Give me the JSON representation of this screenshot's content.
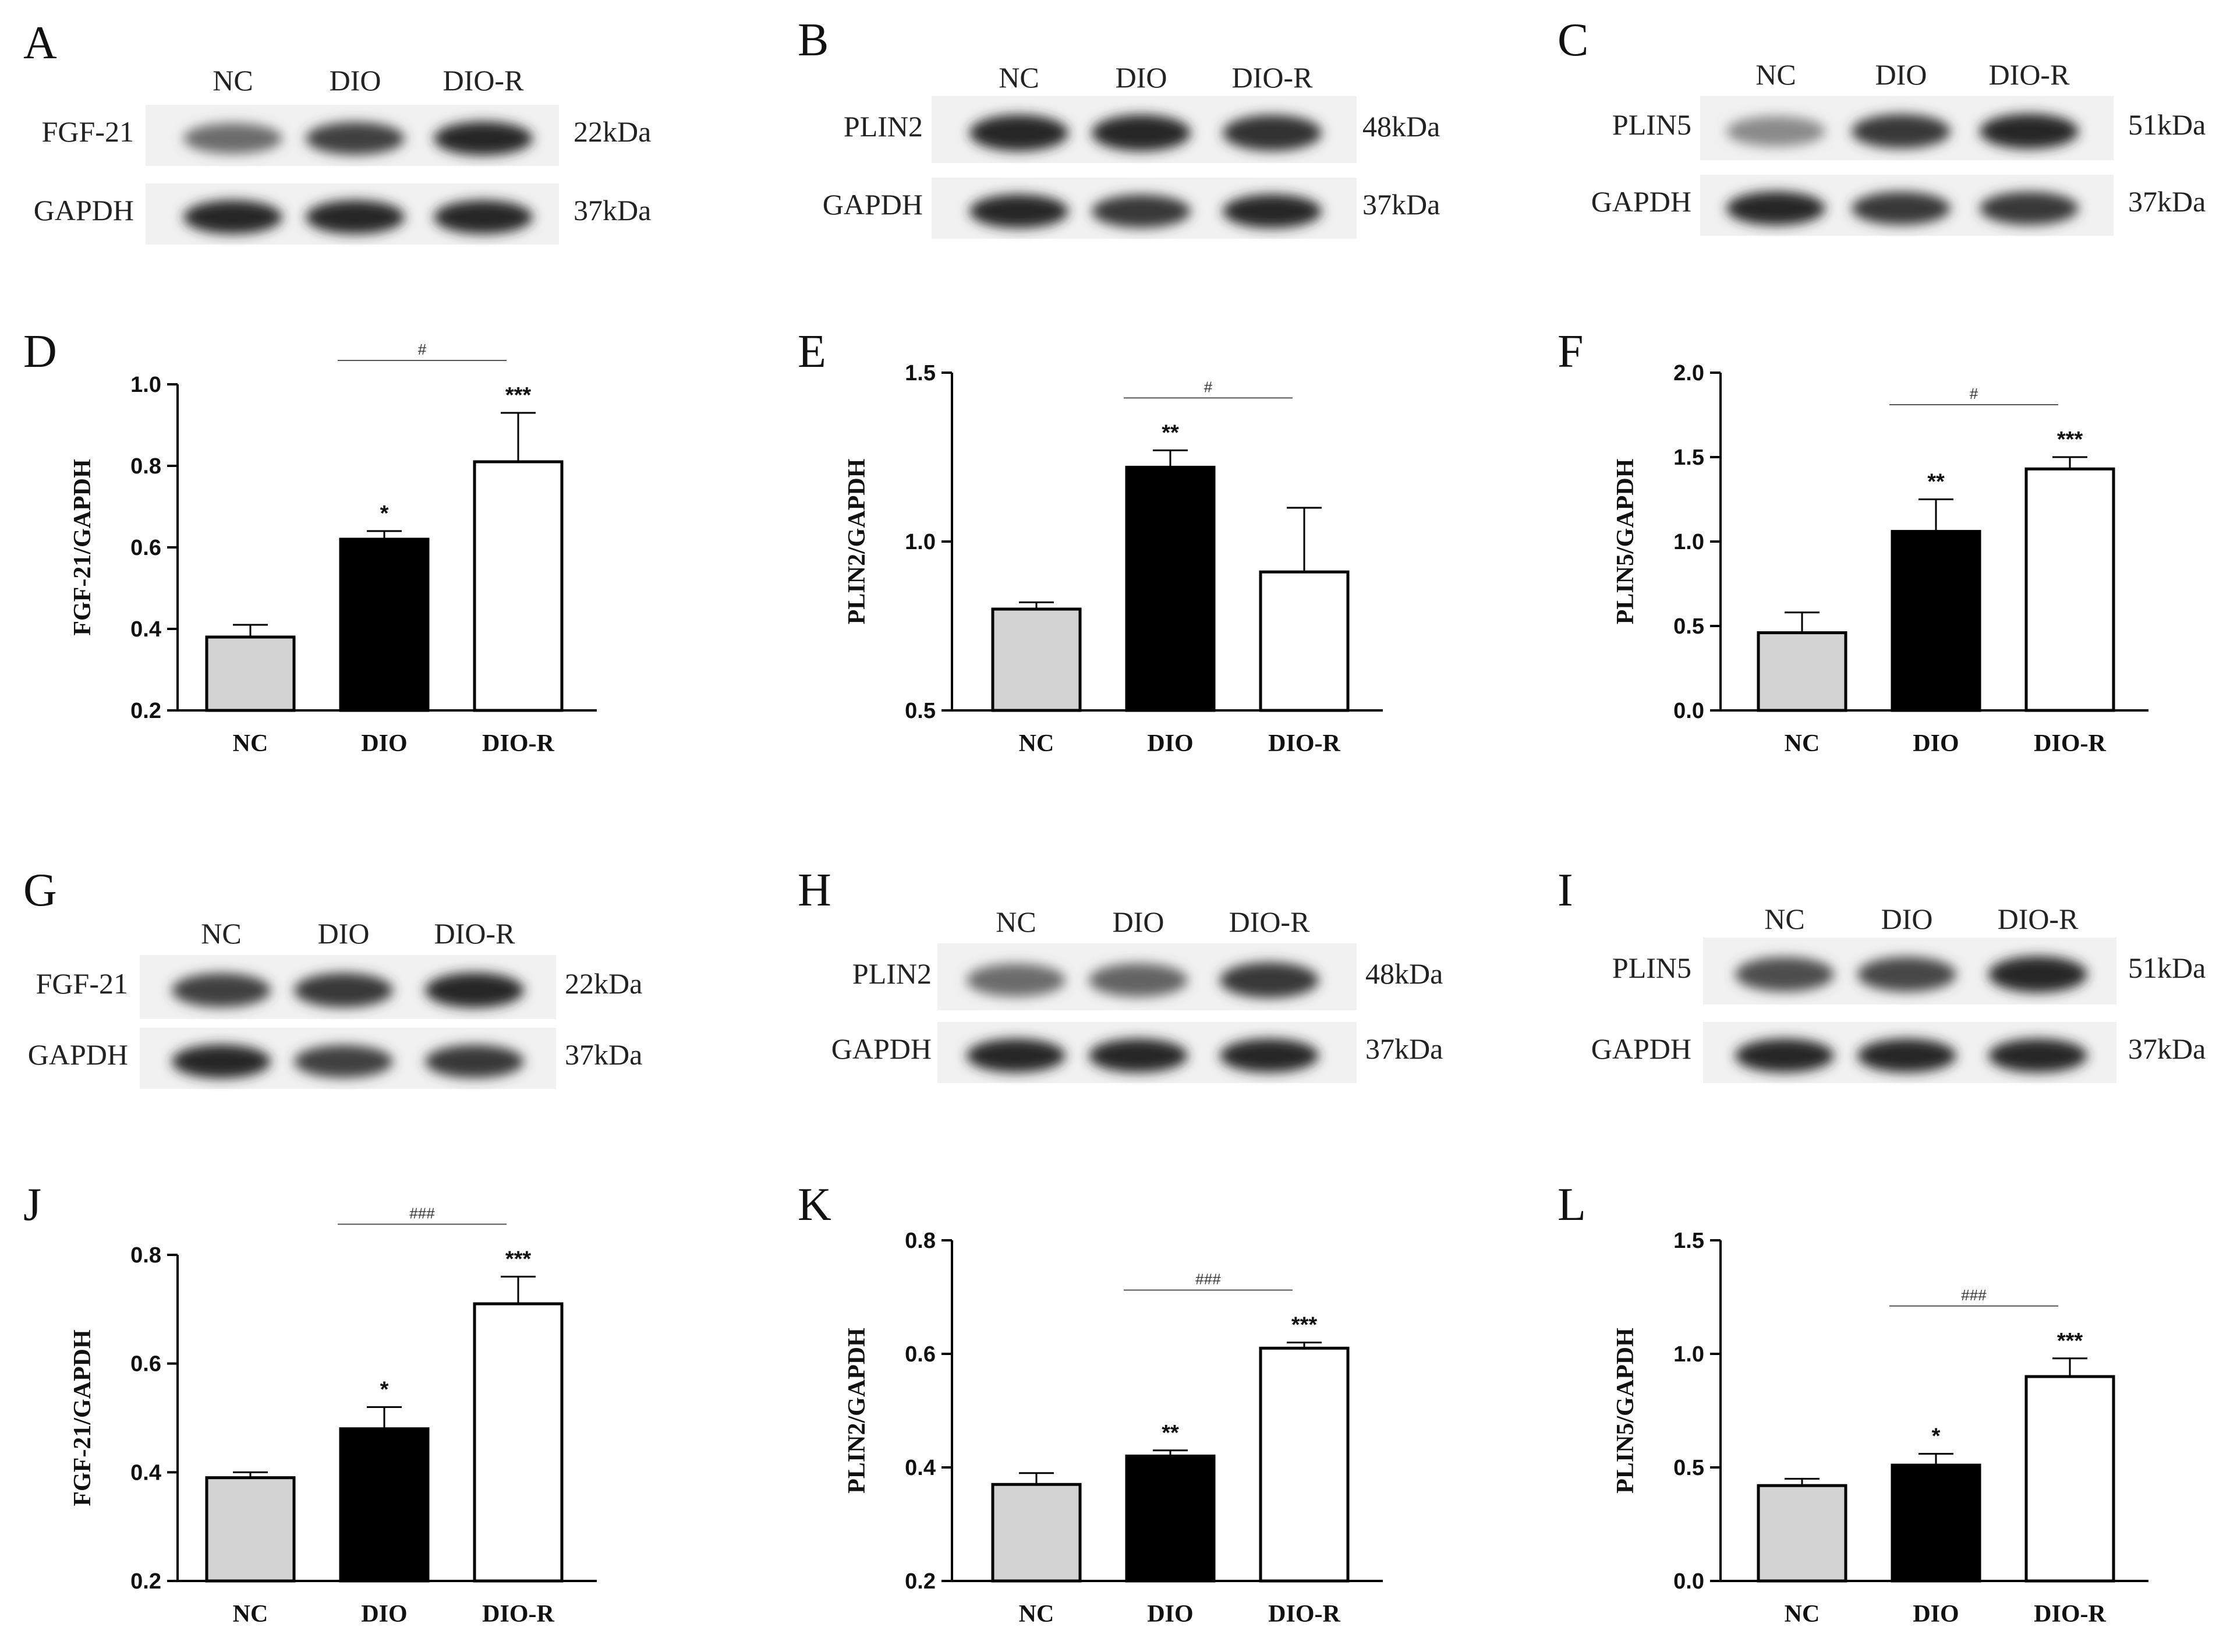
{
  "blots": [
    {
      "letter": "A",
      "lanes": [
        "NC",
        "DIO",
        "DIO-R"
      ],
      "rows": [
        {
          "label": "FGF-21",
          "kda": "22kDa"
        },
        {
          "label": "GAPDH",
          "kda": "37kDa"
        }
      ]
    },
    {
      "letter": "B",
      "lanes": [
        "NC",
        "DIO",
        "DIO-R"
      ],
      "rows": [
        {
          "label": "PLIN2",
          "kda": "48kDa"
        },
        {
          "label": "GAPDH",
          "kda": "37kDa"
        }
      ]
    },
    {
      "letter": "C",
      "lanes": [
        "NC",
        "DIO",
        "DIO-R"
      ],
      "rows": [
        {
          "label": "PLIN5",
          "kda": "51kDa"
        },
        {
          "label": "GAPDH",
          "kda": "37kDa"
        }
      ]
    },
    {
      "letter": "G",
      "lanes": [
        "NC",
        "DIO",
        "DIO-R"
      ],
      "rows": [
        {
          "label": "FGF-21",
          "kda": "22kDa"
        },
        {
          "label": "GAPDH",
          "kda": "37kDa"
        }
      ]
    },
    {
      "letter": "H",
      "lanes": [
        "NC",
        "DIO",
        "DIO-R"
      ],
      "rows": [
        {
          "label": "PLIN2",
          "kda": "48kDa"
        },
        {
          "label": "GAPDH",
          "kda": "37kDa"
        }
      ]
    },
    {
      "letter": "I",
      "lanes": [
        "NC",
        "DIO",
        "DIO-R"
      ],
      "rows": [
        {
          "label": "PLIN5",
          "kda": "51kDa"
        },
        {
          "label": "GAPDH",
          "kda": "37kDa"
        }
      ]
    }
  ],
  "colors": {
    "NC": "#d3d3d3",
    "DIO": "#000000",
    "DIO-R": "#ffffff",
    "axis": "#000000"
  },
  "chart_data": [
    {
      "letter": "D",
      "type": "bar",
      "ylabel": "FGF-21/GAPDH",
      "categories": [
        "NC",
        "DIO",
        "DIO-R"
      ],
      "values": [
        0.38,
        0.62,
        0.81
      ],
      "errors": [
        0.03,
        0.02,
        0.12
      ],
      "stars": [
        "",
        "*",
        "***"
      ],
      "ylim": [
        0.2,
        1.0
      ],
      "yticks": [
        "0.2",
        "0.4",
        "0.6",
        "0.8",
        "1.0"
      ],
      "hash": "#"
    },
    {
      "letter": "E",
      "type": "bar",
      "ylabel": "PLIN2/GAPDH",
      "categories": [
        "NC",
        "DIO",
        "DIO-R"
      ],
      "values": [
        0.8,
        1.22,
        0.91
      ],
      "errors": [
        0.02,
        0.05,
        0.19
      ],
      "stars": [
        "",
        "**",
        ""
      ],
      "ylim": [
        0.5,
        1.5
      ],
      "yticks": [
        "0.5",
        "1.0",
        "1.5"
      ],
      "hash": "#"
    },
    {
      "letter": "F",
      "type": "bar",
      "ylabel": "PLIN5/GAPDH",
      "categories": [
        "NC",
        "DIO",
        "DIO-R"
      ],
      "values": [
        0.46,
        1.06,
        1.43
      ],
      "errors": [
        0.12,
        0.19,
        0.07
      ],
      "stars": [
        "",
        "**",
        "***"
      ],
      "ylim": [
        0.0,
        2.0
      ],
      "yticks": [
        "0.0",
        "0.5",
        "1.0",
        "1.5",
        "2.0"
      ],
      "hash": "#"
    },
    {
      "letter": "J",
      "type": "bar",
      "ylabel": "FGF-21/GAPDH",
      "categories": [
        "NC",
        "DIO",
        "DIO-R"
      ],
      "values": [
        0.39,
        0.48,
        0.71
      ],
      "errors": [
        0.01,
        0.04,
        0.05
      ],
      "stars": [
        "",
        "*",
        "***"
      ],
      "ylim": [
        0.2,
        0.8
      ],
      "yticks": [
        "0.2",
        "0.4",
        "0.6",
        "0.8"
      ],
      "hash": "###"
    },
    {
      "letter": "K",
      "type": "bar",
      "ylabel": "PLIN2/GAPDH",
      "categories": [
        "NC",
        "DIO",
        "DIO-R"
      ],
      "values": [
        0.37,
        0.42,
        0.61
      ],
      "errors": [
        0.02,
        0.01,
        0.01
      ],
      "stars": [
        "",
        "**",
        "***"
      ],
      "ylim": [
        0.2,
        0.8
      ],
      "yticks": [
        "0.2",
        "0.4",
        "0.6",
        "0.8"
      ],
      "hash": "###"
    },
    {
      "letter": "L",
      "type": "bar",
      "ylabel": "PLIN5/GAPDH",
      "categories": [
        "NC",
        "DIO",
        "DIO-R"
      ],
      "values": [
        0.42,
        0.51,
        0.9
      ],
      "errors": [
        0.03,
        0.05,
        0.08
      ],
      "stars": [
        "",
        "*",
        "***"
      ],
      "ylim": [
        0.0,
        1.5
      ],
      "yticks": [
        "0.0",
        "0.5",
        "1.0",
        "1.5"
      ],
      "hash": "###"
    }
  ]
}
